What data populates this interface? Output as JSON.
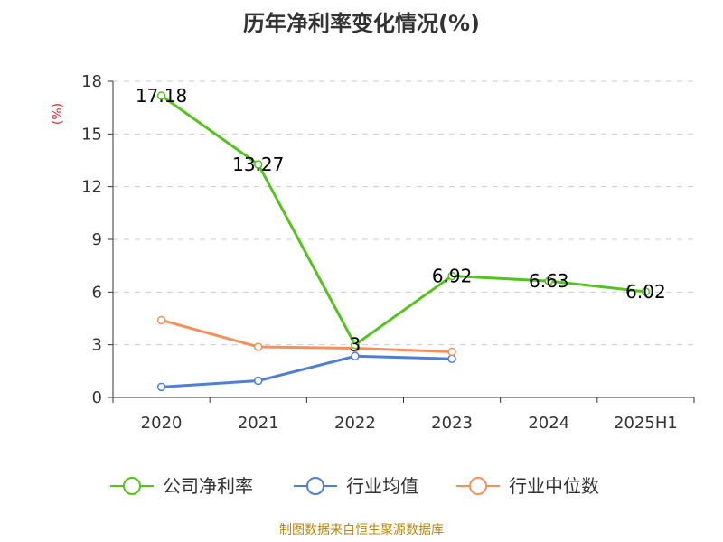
{
  "chart_data": {
    "type": "line",
    "title": "历年净利率变化情况(%)",
    "ylabel": "(%)",
    "categories": [
      "2020",
      "2021",
      "2022",
      "2023",
      "2024",
      "2025H1"
    ],
    "ylim": [
      0,
      18
    ],
    "yticks": [
      0,
      3,
      6,
      9,
      12,
      15,
      18
    ],
    "grid": true,
    "legend_position": "bottom",
    "series": [
      {
        "name": "公司净利率",
        "color": "#52c41a",
        "values": [
          17.18,
          13.27,
          3,
          6.92,
          6.63,
          6.02
        ],
        "labels": [
          "17.18",
          "13.27",
          "3",
          "6.92",
          "6.63",
          "6.02"
        ]
      },
      {
        "name": "行业均值",
        "color": "#4e7fd8",
        "values": [
          0.6,
          0.95,
          2.35,
          2.2,
          null,
          null
        ]
      },
      {
        "name": "行业中位数",
        "color": "#f5905a",
        "values": [
          4.4,
          2.88,
          2.8,
          2.6,
          null,
          null
        ]
      }
    ]
  },
  "source_text": "制图数据来自恒生聚源数据库"
}
